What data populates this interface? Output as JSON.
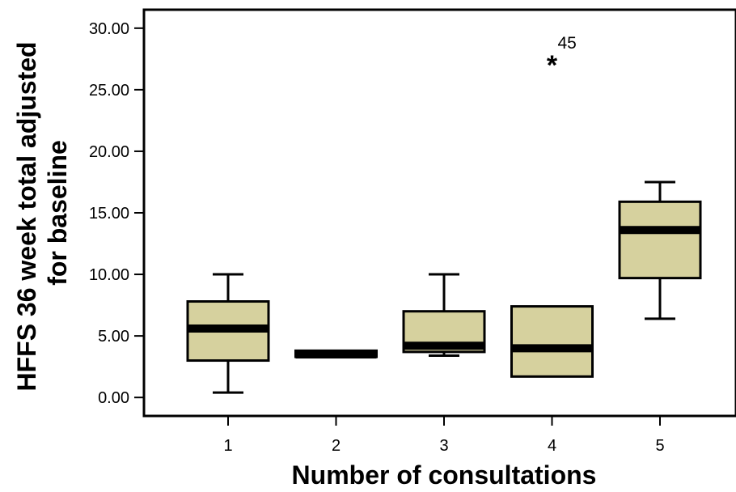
{
  "chart_data": {
    "type": "boxplot",
    "xlabel": "Number of consultations",
    "ylabel_lines": [
      "HFFS 36 week total adjusted",
      "for baseline"
    ],
    "ylim": [
      -1.5,
      31.5
    ],
    "yticks": [
      "0.00",
      "5.00",
      "10.00",
      "15.00",
      "20.00",
      "25.00",
      "30.00"
    ],
    "ytick_values": [
      0,
      5,
      10,
      15,
      20,
      25,
      30
    ],
    "categories": [
      "1",
      "2",
      "3",
      "4",
      "5"
    ],
    "boxes": [
      {
        "category": "1",
        "whisker_low": 0.4,
        "q1": 3.0,
        "median": 5.6,
        "q3": 7.8,
        "whisker_high": 10.0
      },
      {
        "category": "2",
        "whisker_low": 3.3,
        "q1": 3.3,
        "median": 3.5,
        "q3": 3.8,
        "whisker_high": 3.8
      },
      {
        "category": "3",
        "whisker_low": 3.4,
        "q1": 3.7,
        "median": 4.2,
        "q3": 7.0,
        "whisker_high": 10.0
      },
      {
        "category": "4",
        "whisker_low": 1.7,
        "q1": 1.7,
        "median": 4.0,
        "q3": 7.4,
        "whisker_high": 7.4
      },
      {
        "category": "5",
        "whisker_low": 6.4,
        "q1": 9.7,
        "median": 13.6,
        "q3": 15.9,
        "whisker_high": 17.5
      }
    ],
    "outliers": [
      {
        "category": "4",
        "value": 27.3,
        "marker": "*",
        "label": "45"
      }
    ],
    "colors": {
      "box_fill": "#d6d19e",
      "line": "#000000"
    }
  }
}
